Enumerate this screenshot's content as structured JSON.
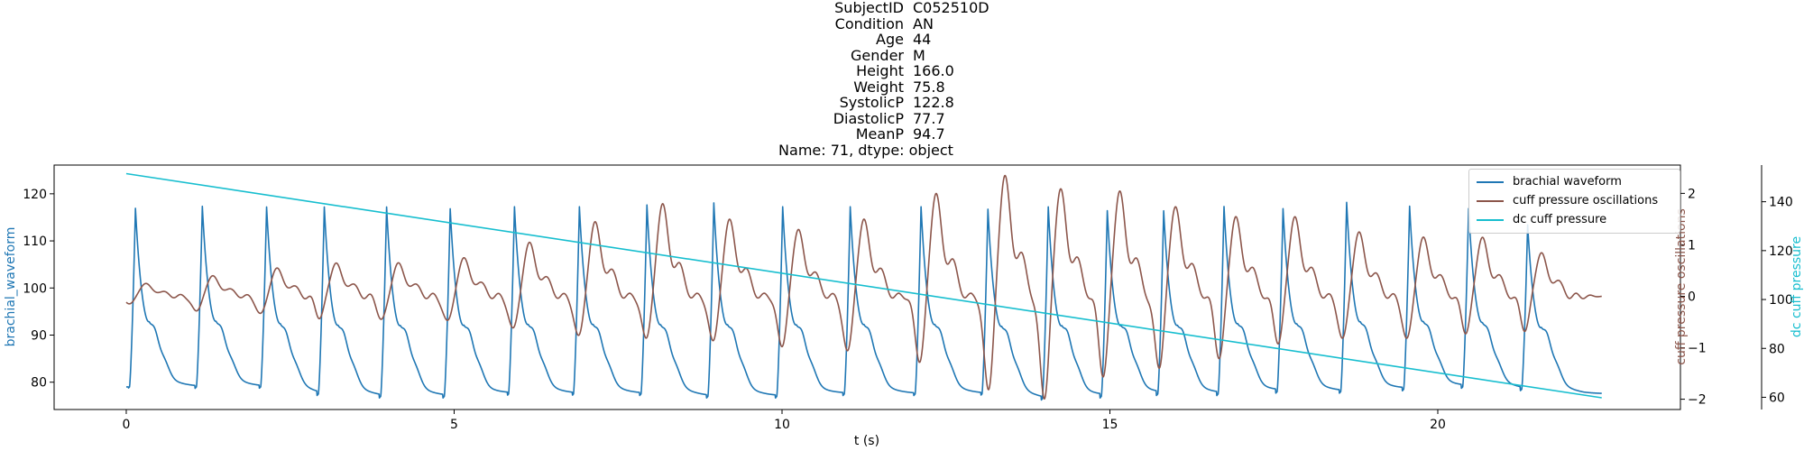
{
  "title_rows": [
    {
      "key": "SubjectID",
      "value": "C052510D"
    },
    {
      "key": "Condition",
      "value": "AN"
    },
    {
      "key": "Age",
      "value": "44"
    },
    {
      "key": "Gender",
      "value": "M"
    },
    {
      "key": "Height",
      "value": "166.0"
    },
    {
      "key": "Weight",
      "value": "75.8"
    },
    {
      "key": "SystolicP",
      "value": "122.8"
    },
    {
      "key": "DiastolicP",
      "value": "77.7"
    },
    {
      "key": "MeanP",
      "value": "94.7"
    }
  ],
  "title_footer": "Name: 71, dtype: object",
  "colors": {
    "brachial": "#1f77b4",
    "cuff_osc": "#8c564b",
    "dc_cuff": "#17becf",
    "axis": "#000000"
  },
  "chart_data": {
    "type": "line",
    "xlabel": "t (s)",
    "xlim": [
      -1.1,
      23.7
    ],
    "x_ticks": [
      0,
      5,
      10,
      15,
      20
    ],
    "grid": false,
    "legend_position": "top-right",
    "axes": {
      "left": {
        "label": "brachial_waveform",
        "ylim": [
          74.2,
          126.1
        ],
        "ticks": [
          80,
          90,
          100,
          110,
          120
        ]
      },
      "right1": {
        "label": "cuff pressure oscillations",
        "ylim": [
          -2.2,
          2.55
        ],
        "ticks": [
          -2,
          -1,
          0,
          1,
          2
        ]
      },
      "right2": {
        "label": "dc cuff pressure",
        "ylim": [
          55,
          155
        ],
        "ticks": [
          60,
          80,
          100,
          120,
          140
        ]
      }
    },
    "series": [
      {
        "name": "brachial waveform",
        "axis": "left",
        "duration": 22.5,
        "beat_times": [
          0.05,
          1.07,
          2.05,
          2.93,
          3.88,
          4.85,
          5.83,
          6.82,
          7.85,
          8.87,
          9.92,
          10.95,
          12.03,
          13.05,
          13.97,
          14.87,
          15.73,
          16.65,
          17.55,
          18.52,
          19.48,
          20.38,
          21.28
        ],
        "beat_peaks": [
          122.0,
          122.5,
          122.5,
          122.5,
          122.5,
          122.0,
          122.5,
          122.5,
          123.0,
          123.5,
          122.5,
          122.5,
          122.5,
          122.0,
          122.5,
          121.5,
          121.5,
          122.5,
          122.0,
          123.5,
          122.5,
          122.0,
          118.0
        ],
        "beat_troughs": [
          79.0,
          79.0,
          79.0,
          77.5,
          77.0,
          77.0,
          77.5,
          77.5,
          77.5,
          77.0,
          77.0,
          77.5,
          77.5,
          77.5,
          76.5,
          77.0,
          77.5,
          77.5,
          78.0,
          78.0,
          78.5,
          79.0,
          78.5
        ],
        "dicrotic_level": 96.0,
        "end_value": 77.5
      },
      {
        "name": "cuff pressure oscillations",
        "axis": "right1",
        "duration": 22.5,
        "beat_times": [
          0.1,
          1.12,
          2.1,
          3.0,
          3.95,
          4.95,
          5.95,
          6.95,
          7.98,
          9.0,
          10.05,
          11.05,
          12.15,
          13.2,
          14.05,
          14.95,
          15.8,
          16.72,
          17.62,
          18.6,
          19.58,
          20.48,
          21.38
        ],
        "amplitudes": [
          0.25,
          0.4,
          0.55,
          0.65,
          0.65,
          0.75,
          1.05,
          1.45,
          1.8,
          1.5,
          1.3,
          1.5,
          2.0,
          2.35,
          2.1,
          2.05,
          1.75,
          1.55,
          1.55,
          1.25,
          1.15,
          1.15,
          0.85
        ],
        "troughs": [
          -0.15,
          -0.3,
          -0.35,
          -0.4,
          -0.45,
          -0.5,
          -0.65,
          -0.8,
          -0.85,
          -0.9,
          -1.0,
          -1.1,
          -1.3,
          -1.85,
          -2.0,
          -1.55,
          -1.4,
          -1.2,
          -0.9,
          -0.85,
          -0.85,
          -0.7,
          -0.65
        ],
        "end_value": -0.2
      },
      {
        "name": "dc cuff pressure",
        "axis": "right2",
        "x": [
          0,
          22.5
        ],
        "values": [
          151.5,
          59.8
        ]
      }
    ]
  }
}
